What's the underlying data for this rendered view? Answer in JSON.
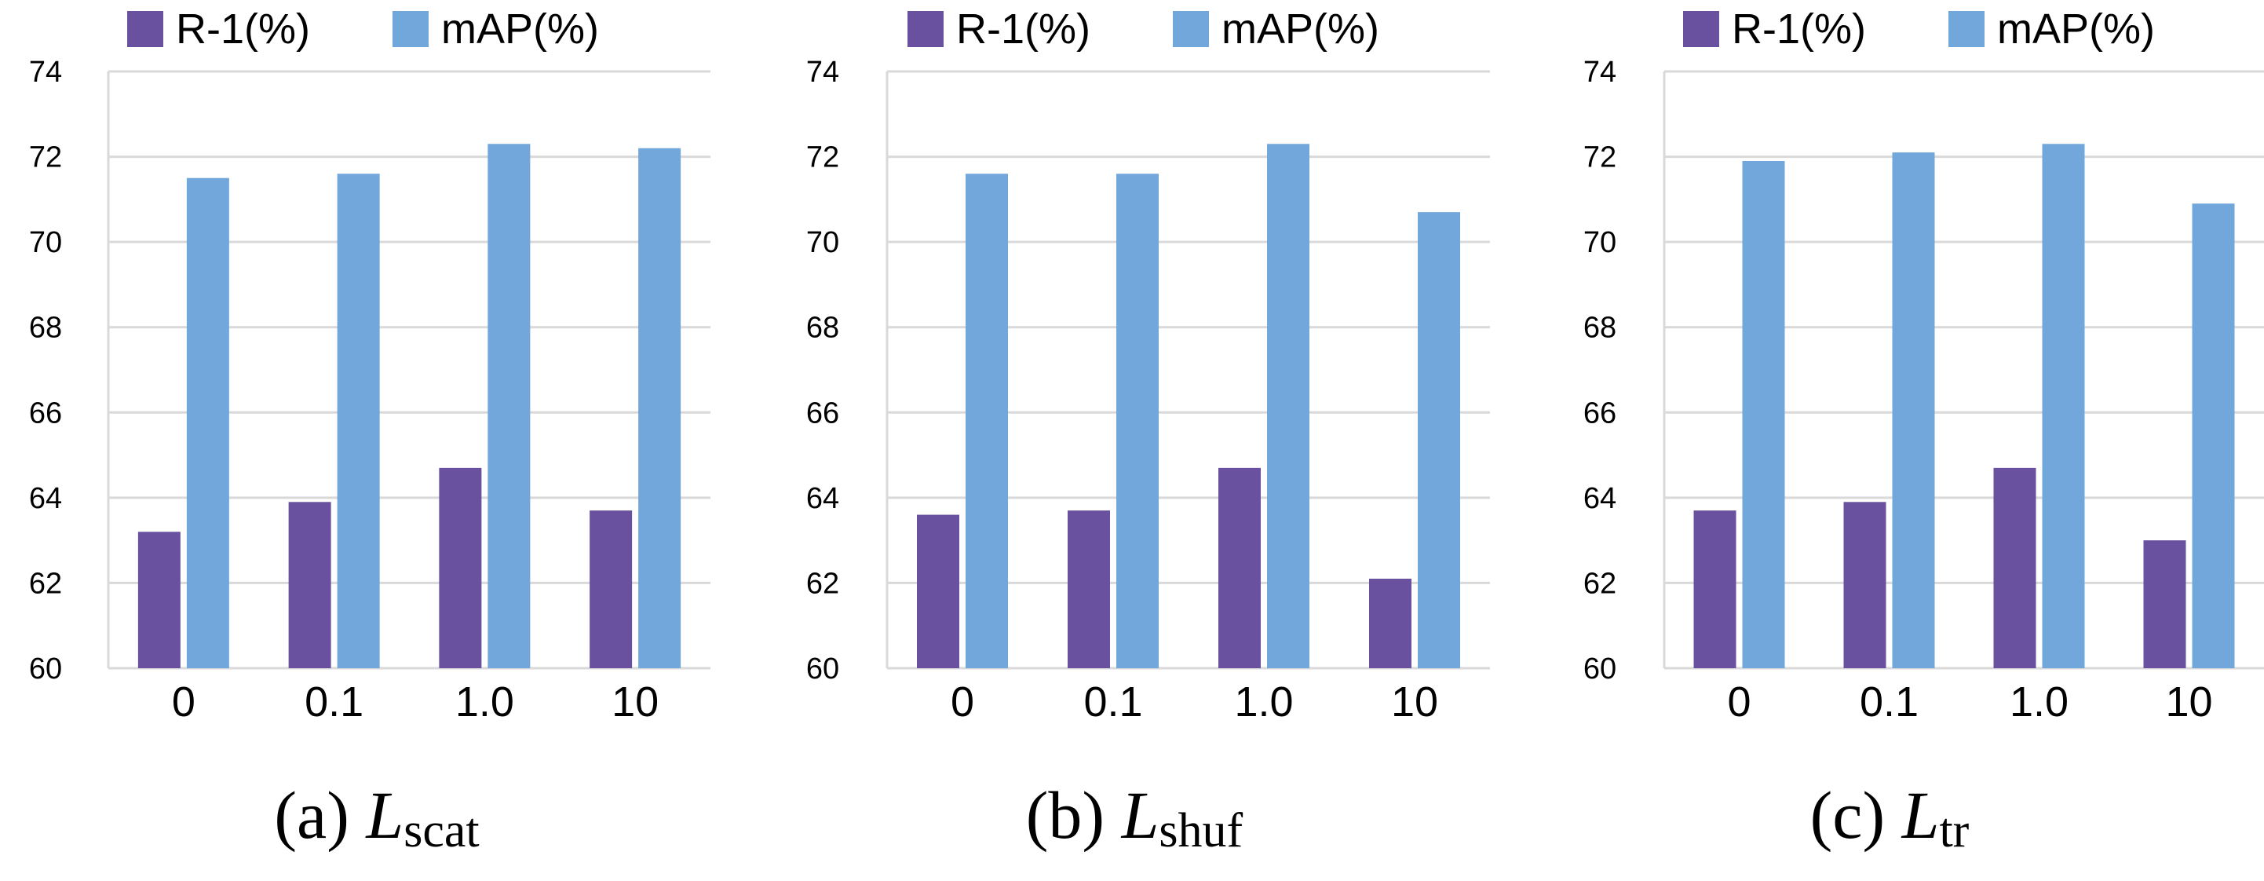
{
  "legend": {
    "r1": {
      "label": "R-1(%)",
      "color": "#6A51A0"
    },
    "map": {
      "label": "mAP(%)",
      "color": "#71A7DA"
    }
  },
  "chart_data": [
    {
      "type": "bar",
      "title": "(a) Lscat",
      "caption": {
        "prefix": "(a) ",
        "symbol": "L",
        "subscript": "scat"
      },
      "categories": [
        "0",
        "0.1",
        "1.0",
        "10"
      ],
      "series": [
        {
          "name": "R-1(%)",
          "values": [
            63.2,
            63.9,
            64.7,
            63.7
          ]
        },
        {
          "name": "mAP(%)",
          "values": [
            71.5,
            71.6,
            72.3,
            72.2
          ]
        }
      ],
      "ylim": [
        60,
        74
      ],
      "yticks": [
        60,
        62,
        64,
        66,
        68,
        70,
        72,
        74
      ],
      "grid": true,
      "legend_position": "top"
    },
    {
      "type": "bar",
      "title": "(b) Lshuf",
      "caption": {
        "prefix": "(b) ",
        "symbol": "L",
        "subscript": "shuf"
      },
      "categories": [
        "0",
        "0.1",
        "1.0",
        "10"
      ],
      "series": [
        {
          "name": "R-1(%)",
          "values": [
            63.6,
            63.7,
            64.7,
            62.1
          ]
        },
        {
          "name": "mAP(%)",
          "values": [
            71.6,
            71.6,
            72.3,
            70.7
          ]
        }
      ],
      "ylim": [
        60,
        74
      ],
      "yticks": [
        60,
        62,
        64,
        66,
        68,
        70,
        72,
        74
      ],
      "grid": true,
      "legend_position": "top"
    },
    {
      "type": "bar",
      "title": "(c) Ltr",
      "caption": {
        "prefix": "(c) ",
        "symbol": "L",
        "subscript": "tr"
      },
      "categories": [
        "0",
        "0.1",
        "1.0",
        "10"
      ],
      "series": [
        {
          "name": "R-1(%)",
          "values": [
            63.7,
            63.9,
            64.7,
            63.0
          ]
        },
        {
          "name": "mAP(%)",
          "values": [
            71.9,
            72.1,
            72.3,
            70.9
          ]
        }
      ],
      "ylim": [
        60,
        74
      ],
      "yticks": [
        60,
        62,
        64,
        66,
        68,
        70,
        72,
        74
      ],
      "grid": true,
      "legend_position": "top"
    }
  ]
}
